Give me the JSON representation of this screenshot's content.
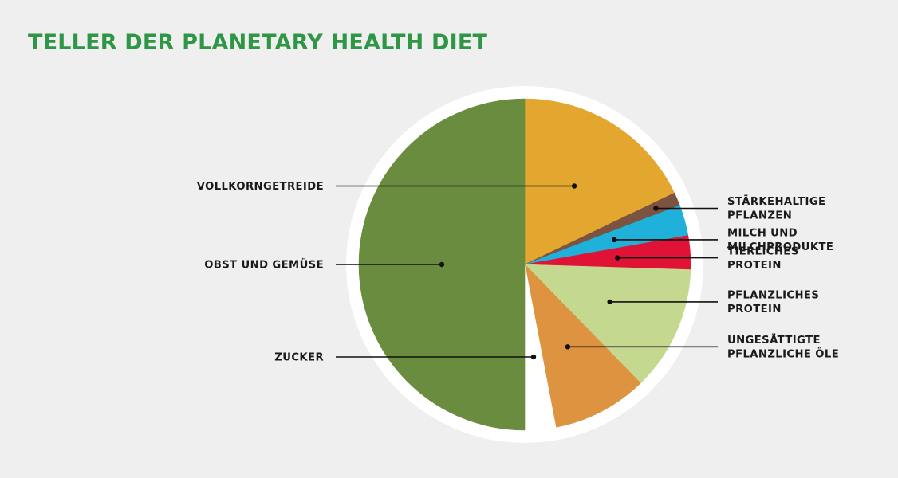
{
  "chart_data": {
    "type": "pie",
    "title": "TELLER DER PLANETARY HEALTH DIET",
    "title_color": "#2e9645",
    "slices": [
      {
        "label": [
          "VOLLKORNGETREIDE"
        ],
        "value": 17.9,
        "color": "#e3a62f",
        "side": "left"
      },
      {
        "label": [
          "STÄRKEHALTIGE",
          "PFLANZEN"
        ],
        "value": 1.3,
        "color": "#7b5340",
        "side": "right"
      },
      {
        "label": [
          "MILCH UND",
          "MILCHPRODUKTE"
        ],
        "value": 3.0,
        "color": "#1fb1d9",
        "side": "right"
      },
      {
        "label": [
          "TIERLICHES",
          "PROTEIN"
        ],
        "value": 3.3,
        "color": "#e01336",
        "side": "right"
      },
      {
        "label": [
          "PFLANZLICHES",
          "PROTEIN"
        ],
        "value": 12.2,
        "color": "#c4d88f",
        "side": "right"
      },
      {
        "label": [
          "UNGESÄTTIGTE",
          "PFLANZLICHE ÖLE"
        ],
        "value": 9.3,
        "color": "#dd9340",
        "side": "right"
      },
      {
        "label": [
          "ZUCKER"
        ],
        "value": 3.0,
        "color": "#ffffff",
        "side": "left"
      },
      {
        "label": [
          "OBST UND GEMÜSE"
        ],
        "value": 50.0,
        "color": "#6a8c3f",
        "side": "left"
      }
    ]
  }
}
